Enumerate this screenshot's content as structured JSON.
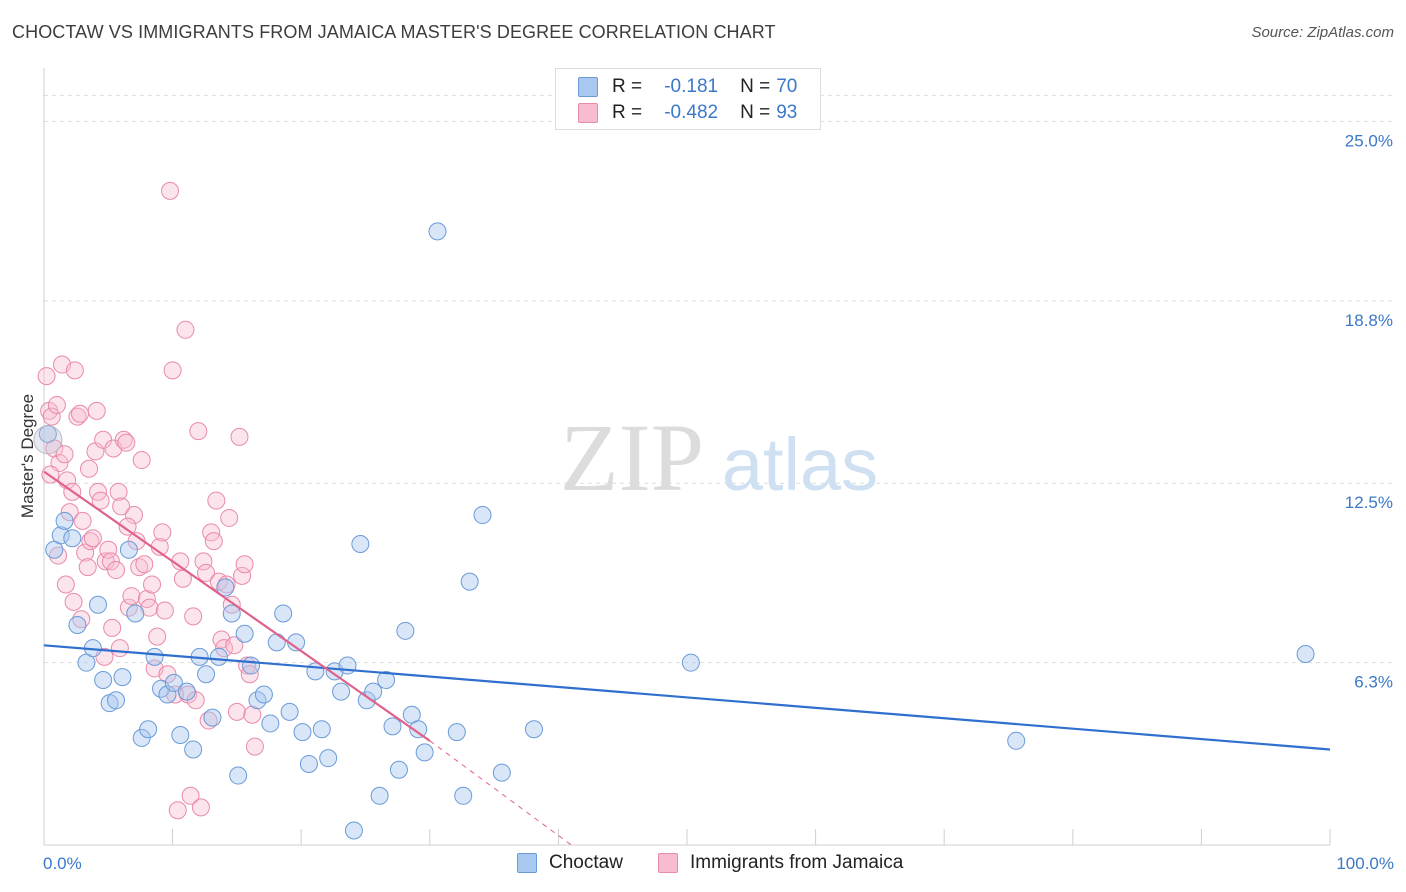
{
  "header": {
    "title": "CHOCTAW VS IMMIGRANTS FROM JAMAICA MASTER'S DEGREE CORRELATION CHART",
    "source": "Source: ZipAtlas.com"
  },
  "watermark": {
    "zip": "ZIP",
    "atlas": "atlas"
  },
  "legend": {
    "rows": [
      {
        "r_label": "R =",
        "r_value": "-0.181",
        "n_label": "N =",
        "n_value": "70",
        "fill": "#a9c8f0",
        "stroke": "#6a9bd8"
      },
      {
        "r_label": "R =",
        "r_value": "-0.482",
        "n_label": "N =",
        "n_value": "93",
        "fill": "#f7bcd0",
        "stroke": "#e98aaa"
      }
    ]
  },
  "bottom_legend": {
    "series1": "Choctaw",
    "series2": "Immigrants from Jamaica"
  },
  "colors": {
    "choctaw_fill": "rgba(169,200,240,0.45)",
    "choctaw_stroke": "#6a9bd8",
    "choctaw_line": "#2f6fce",
    "jamaica_fill": "rgba(247,188,208,0.40)",
    "jamaica_stroke": "#e98aaa",
    "jamaica_line": "#e0628b",
    "axis_text": "#3a78c8",
    "grid": "#dddddd"
  },
  "chart_data": {
    "type": "scatter",
    "title": "CHOCTAW VS IMMIGRANTS FROM JAMAICA MASTER'S DEGREE CORRELATION CHART",
    "xlabel": "",
    "ylabel": "Master's Degree",
    "xlim": [
      0,
      100
    ],
    "ylim": [
      0,
      26.5
    ],
    "x_tick_labels": [
      {
        "value": 0,
        "label": "0.0%"
      },
      {
        "value": 100,
        "label": "100.0%"
      }
    ],
    "y_ticks": [
      {
        "value": 6.3,
        "label": "6.3%"
      },
      {
        "value": 12.5,
        "label": "12.5%"
      },
      {
        "value": 18.8,
        "label": "18.8%"
      },
      {
        "value": 25.0,
        "label": "25.0%"
      }
    ],
    "x_minor_ticks": [
      0,
      10,
      20,
      30,
      40,
      50,
      60,
      70,
      80,
      90,
      100
    ],
    "series": [
      {
        "name": "Choctaw",
        "trend": {
          "x0": 0,
          "y0": 6.9,
          "x1": 100,
          "y1": 3.3
        },
        "points": [
          [
            0.3,
            14.2
          ],
          [
            0.8,
            10.2
          ],
          [
            1.3,
            10.7
          ],
          [
            1.6,
            11.2
          ],
          [
            2.2,
            10.6
          ],
          [
            2.6,
            7.6
          ],
          [
            3.3,
            6.3
          ],
          [
            3.8,
            6.8
          ],
          [
            4.2,
            8.3
          ],
          [
            4.6,
            5.7
          ],
          [
            5.1,
            4.9
          ],
          [
            5.6,
            5.0
          ],
          [
            6.1,
            5.8
          ],
          [
            6.6,
            10.2
          ],
          [
            7.1,
            8.0
          ],
          [
            7.6,
            3.7
          ],
          [
            8.1,
            4.0
          ],
          [
            8.6,
            6.5
          ],
          [
            9.1,
            5.4
          ],
          [
            9.6,
            5.2
          ],
          [
            10.1,
            5.6
          ],
          [
            10.6,
            3.8
          ],
          [
            11.1,
            5.3
          ],
          [
            11.6,
            3.3
          ],
          [
            12.1,
            6.5
          ],
          [
            12.6,
            5.9
          ],
          [
            13.1,
            4.4
          ],
          [
            13.6,
            6.5
          ],
          [
            14.1,
            8.9
          ],
          [
            14.6,
            8.0
          ],
          [
            15.1,
            2.4
          ],
          [
            15.6,
            7.3
          ],
          [
            16.1,
            6.2
          ],
          [
            16.6,
            5.0
          ],
          [
            17.1,
            5.2
          ],
          [
            17.6,
            4.2
          ],
          [
            18.1,
            7.0
          ],
          [
            18.6,
            8.0
          ],
          [
            19.1,
            4.6
          ],
          [
            19.6,
            7.0
          ],
          [
            20.1,
            3.9
          ],
          [
            20.6,
            2.8
          ],
          [
            21.1,
            6.0
          ],
          [
            21.6,
            4.0
          ],
          [
            22.1,
            3.0
          ],
          [
            22.6,
            6.0
          ],
          [
            23.1,
            5.3
          ],
          [
            23.6,
            6.2
          ],
          [
            24.1,
            0.5
          ],
          [
            24.6,
            10.4
          ],
          [
            25.1,
            5.0
          ],
          [
            25.6,
            5.3
          ],
          [
            26.1,
            1.7
          ],
          [
            26.6,
            5.7
          ],
          [
            27.1,
            4.1
          ],
          [
            27.6,
            2.6
          ],
          [
            28.1,
            7.4
          ],
          [
            28.6,
            4.5
          ],
          [
            29.1,
            4.0
          ],
          [
            29.6,
            3.2
          ],
          [
            30.6,
            21.2
          ],
          [
            32.1,
            3.9
          ],
          [
            32.6,
            1.7
          ],
          [
            33.1,
            9.1
          ],
          [
            34.1,
            11.4
          ],
          [
            35.6,
            2.5
          ],
          [
            38.1,
            4.0
          ],
          [
            50.3,
            6.3
          ],
          [
            75.6,
            3.6
          ],
          [
            98.1,
            6.6
          ]
        ]
      },
      {
        "name": "Immigrants from Jamaica",
        "trend": {
          "x0": 0,
          "y0": 12.9,
          "x1": 30,
          "y1": 3.6
        },
        "trend_dashed": {
          "x0": 30,
          "y0": 3.6,
          "x1": 41,
          "y1": 0.0
        },
        "points": [
          [
            0.2,
            16.2
          ],
          [
            0.4,
            15.0
          ],
          [
            0.6,
            14.8
          ],
          [
            0.8,
            13.7
          ],
          [
            1.0,
            15.2
          ],
          [
            1.2,
            13.2
          ],
          [
            1.4,
            16.6
          ],
          [
            1.6,
            13.5
          ],
          [
            1.8,
            12.6
          ],
          [
            2.0,
            11.5
          ],
          [
            2.2,
            12.2
          ],
          [
            2.4,
            16.4
          ],
          [
            2.6,
            14.8
          ],
          [
            2.8,
            14.9
          ],
          [
            3.0,
            11.2
          ],
          [
            3.2,
            10.1
          ],
          [
            3.4,
            9.6
          ],
          [
            3.6,
            10.5
          ],
          [
            3.8,
            10.6
          ],
          [
            4.0,
            13.6
          ],
          [
            4.2,
            12.2
          ],
          [
            4.4,
            11.9
          ],
          [
            4.6,
            14.0
          ],
          [
            4.8,
            9.8
          ],
          [
            5.0,
            10.2
          ],
          [
            5.2,
            9.8
          ],
          [
            5.4,
            13.7
          ],
          [
            5.6,
            9.5
          ],
          [
            5.8,
            12.2
          ],
          [
            6.0,
            11.7
          ],
          [
            6.2,
            14.0
          ],
          [
            6.4,
            13.9
          ],
          [
            6.6,
            8.2
          ],
          [
            6.8,
            8.6
          ],
          [
            7.0,
            11.4
          ],
          [
            7.2,
            10.5
          ],
          [
            7.4,
            9.6
          ],
          [
            7.6,
            13.3
          ],
          [
            7.8,
            9.7
          ],
          [
            8.0,
            8.5
          ],
          [
            8.2,
            8.2
          ],
          [
            8.4,
            9.0
          ],
          [
            8.6,
            6.1
          ],
          [
            8.8,
            7.2
          ],
          [
            9.0,
            10.3
          ],
          [
            9.2,
            10.8
          ],
          [
            9.4,
            8.1
          ],
          [
            9.6,
            5.9
          ],
          [
            9.8,
            22.6
          ],
          [
            10.0,
            16.4
          ],
          [
            10.2,
            5.2
          ],
          [
            10.4,
            1.2
          ],
          [
            10.6,
            9.8
          ],
          [
            10.8,
            9.2
          ],
          [
            11.0,
            17.8
          ],
          [
            11.2,
            5.2
          ],
          [
            11.4,
            1.7
          ],
          [
            11.6,
            7.9
          ],
          [
            11.8,
            5.0
          ],
          [
            12.0,
            14.3
          ],
          [
            12.2,
            1.3
          ],
          [
            12.4,
            9.8
          ],
          [
            12.6,
            9.4
          ],
          [
            12.8,
            4.3
          ],
          [
            13.0,
            10.8
          ],
          [
            13.2,
            10.5
          ],
          [
            13.4,
            11.9
          ],
          [
            13.6,
            9.1
          ],
          [
            13.8,
            7.1
          ],
          [
            14.0,
            6.8
          ],
          [
            14.2,
            9.0
          ],
          [
            14.4,
            11.3
          ],
          [
            14.6,
            8.3
          ],
          [
            14.8,
            6.9
          ],
          [
            15.0,
            4.6
          ],
          [
            15.2,
            14.1
          ],
          [
            15.4,
            9.3
          ],
          [
            15.6,
            9.7
          ],
          [
            15.8,
            6.2
          ],
          [
            16.0,
            5.9
          ],
          [
            16.2,
            4.5
          ],
          [
            16.4,
            3.4
          ],
          [
            0.5,
            12.8
          ],
          [
            1.1,
            10.0
          ],
          [
            1.7,
            9.0
          ],
          [
            2.3,
            8.4
          ],
          [
            2.9,
            7.8
          ],
          [
            3.5,
            13.0
          ],
          [
            4.1,
            15.0
          ],
          [
            4.7,
            6.5
          ],
          [
            5.3,
            7.5
          ],
          [
            5.9,
            6.8
          ],
          [
            6.5,
            11.0
          ]
        ]
      }
    ]
  }
}
